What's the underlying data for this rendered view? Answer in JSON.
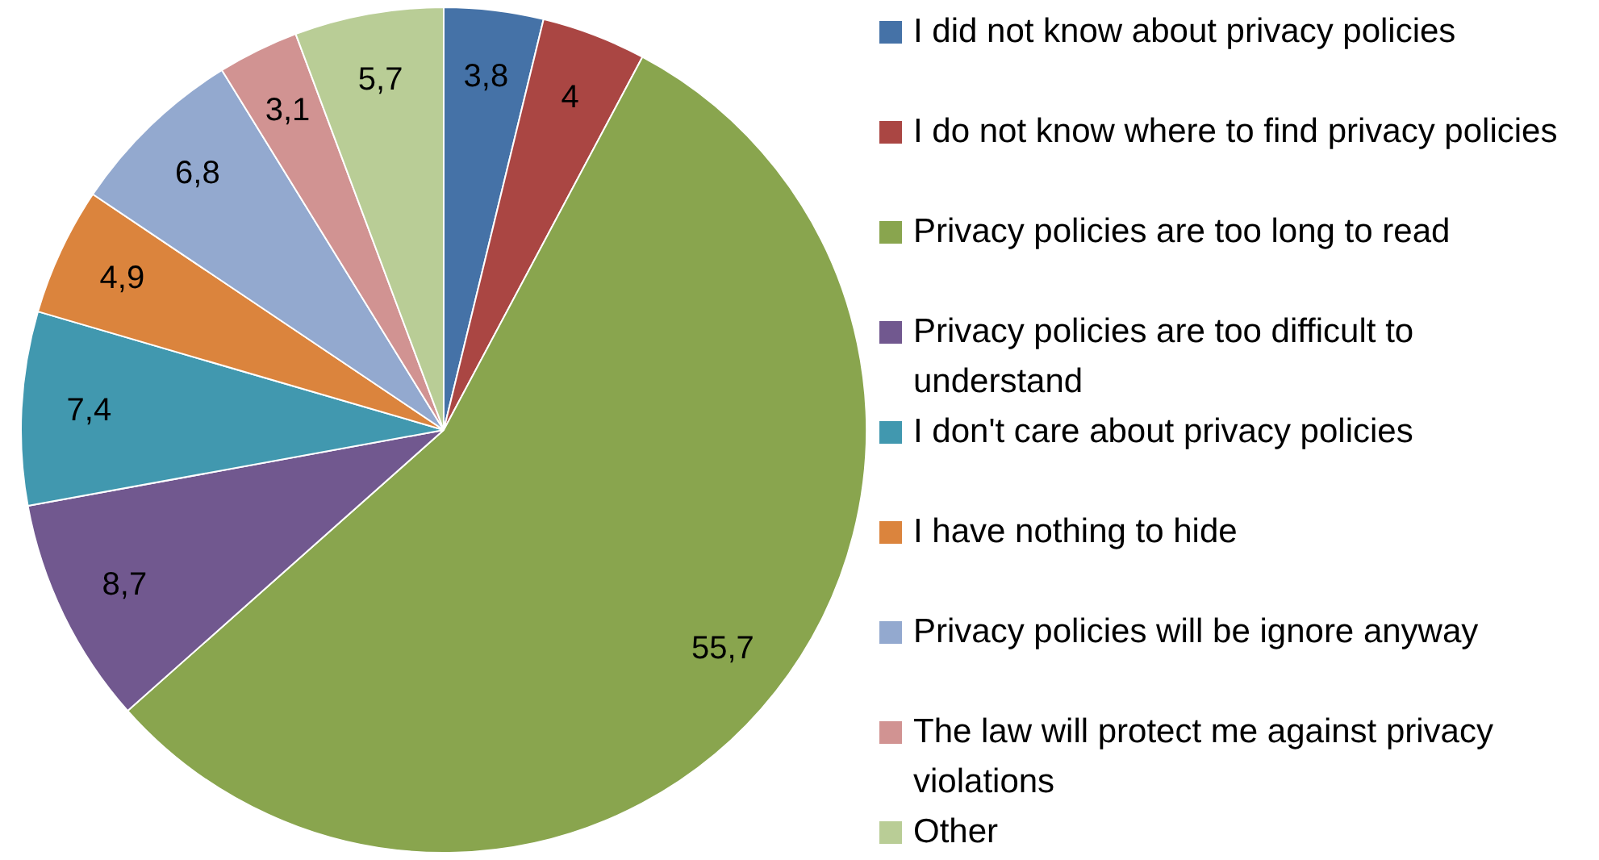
{
  "chart_data": {
    "type": "pie",
    "categories": [
      "I did not know about privacy policies",
      "I do not know where to find privacy policies",
      "Privacy policies are too long to read",
      "Privacy policies are too difficult to understand",
      "I don't care about privacy policies",
      "I have nothing to hide",
      "Privacy policies will be ignore anyway",
      "The law will protect me against privacy violations",
      "Other"
    ],
    "values": [
      3.8,
      4,
      55.7,
      8.7,
      7.4,
      4.9,
      6.8,
      3.1,
      5.7
    ],
    "value_labels": [
      "3,8",
      "4",
      "55,7",
      "8,7",
      "7,4",
      "4,9",
      "6,8",
      "3,1",
      "5,7"
    ],
    "colors": [
      "#4572a7",
      "#aa4643",
      "#89a54e",
      "#71588f",
      "#4198af",
      "#db843d",
      "#93a9cf",
      "#d19392",
      "#b9cd96"
    ],
    "legend": "right"
  }
}
